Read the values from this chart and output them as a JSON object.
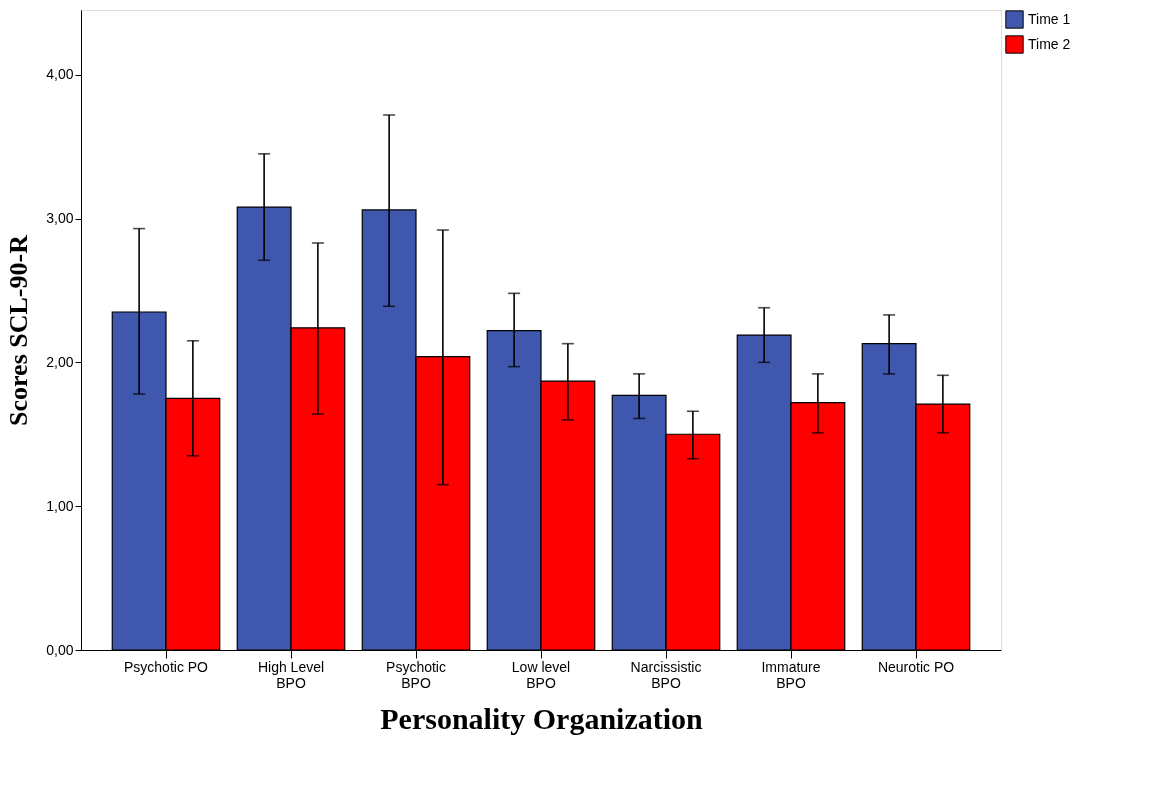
{
  "chart_data": {
    "type": "bar",
    "xlabel": "Personality Organization",
    "ylabel": "Scores SCL-90-R",
    "categories": [
      "Psychotic PO",
      "High Level\nBPO",
      "Psychotic\nBPO",
      "Low level\nBPO",
      "Narcissistic\nBPO",
      "Immature\nBPO",
      "Neurotic PO"
    ],
    "series": [
      {
        "name": "Time 1",
        "color": "#3f58ad",
        "values": [
          2.35,
          3.08,
          3.06,
          2.22,
          1.77,
          2.19,
          2.13
        ],
        "errors": [
          [
            1.78,
            2.93
          ],
          [
            2.71,
            3.45
          ],
          [
            2.39,
            3.72
          ],
          [
            1.97,
            2.48
          ],
          [
            1.61,
            1.92
          ],
          [
            2.0,
            2.38
          ],
          [
            1.92,
            2.33
          ]
        ]
      },
      {
        "name": "Time 2",
        "color": "#ff0000",
        "values": [
          1.75,
          2.24,
          2.04,
          1.87,
          1.5,
          1.72,
          1.71
        ],
        "errors": [
          [
            1.35,
            2.15
          ],
          [
            1.64,
            2.83
          ],
          [
            1.15,
            2.92
          ],
          [
            1.6,
            2.13
          ],
          [
            1.33,
            1.66
          ],
          [
            1.51,
            1.92
          ],
          [
            1.51,
            1.91
          ]
        ]
      }
    ],
    "ylim": [
      0,
      4.45
    ],
    "yticks": [
      {
        "value": 0,
        "label": "0,00"
      },
      {
        "value": 1,
        "label": "1,00"
      },
      {
        "value": 2,
        "label": "2,00"
      },
      {
        "value": 3,
        "label": "3,00"
      },
      {
        "value": 4,
        "label": "4,00"
      }
    ],
    "grid": false,
    "legend": "top right"
  }
}
